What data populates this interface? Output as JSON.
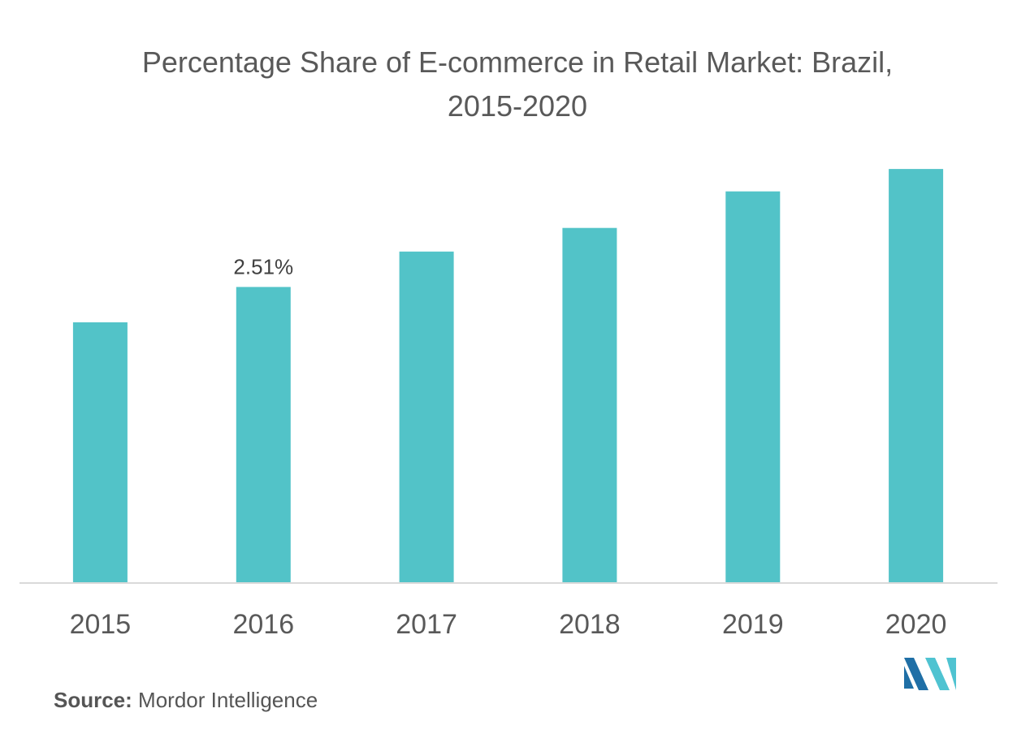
{
  "chart_data": {
    "type": "bar",
    "title_line1": "Percentage Share of E-commerce in Retail Market: Brazil,",
    "title_line2": "2015-2020",
    "categories": [
      "2015",
      "2016",
      "2017",
      "2018",
      "2019",
      "2020"
    ],
    "values": [
      2.21,
      2.51,
      2.81,
      3.01,
      3.32,
      3.51
    ],
    "data_labels": [
      {
        "index": 1,
        "text": "2.51%"
      }
    ],
    "ylim": [
      0,
      3.6
    ],
    "xlabel": "",
    "ylabel": "",
    "grid": false,
    "bar_color": "#52C3C8",
    "axis_color": "#D9D9D9"
  },
  "source": {
    "label": "Source:",
    "text": "Mordor Intelligence"
  },
  "logo": {
    "icon": "mordor-intelligence-logo-icon",
    "colors": [
      "#1F6FA6",
      "#4FC3D1"
    ]
  }
}
